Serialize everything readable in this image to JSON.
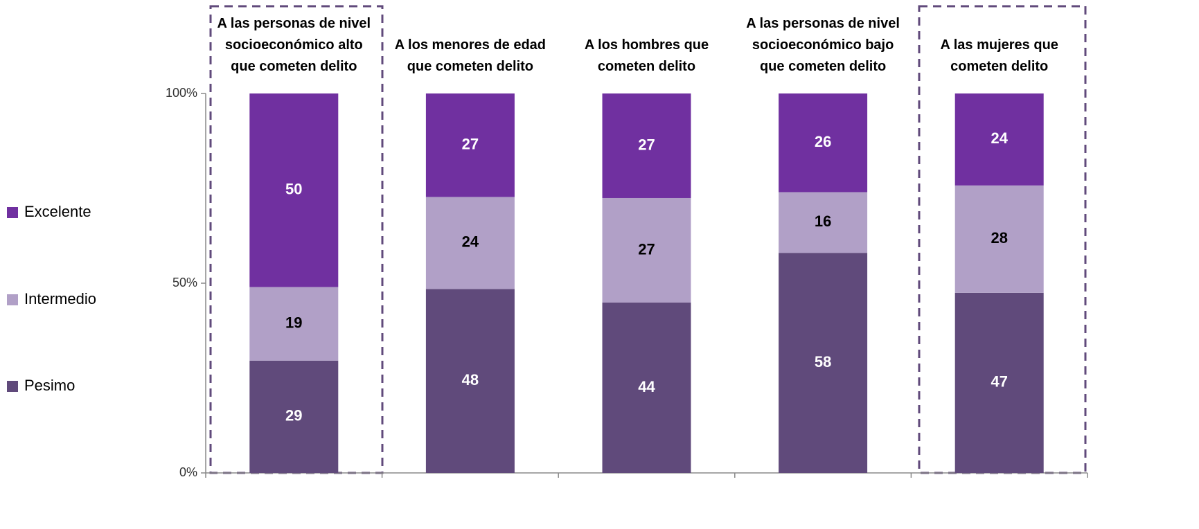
{
  "chart_data": {
    "type": "bar",
    "stacking": "percent",
    "categories": [
      "A las personas de nivel\nsocioeconómico alto\nque cometen delito",
      "A los menores de edad\nque cometen delito",
      "A los hombres que\ncometen  delito",
      "A las personas de nivel\nsocioeconómico bajo\nque cometen delito",
      "A las mujeres que\ncometen delito"
    ],
    "series": [
      {
        "name": "Pesimo",
        "color": "#604a7b",
        "label_color": "#ffffff",
        "values": [
          29,
          48,
          44,
          58,
          47
        ]
      },
      {
        "name": "Intermedio",
        "color": "#b1a0c7",
        "label_color": "#000000",
        "values": [
          19,
          24,
          27,
          16,
          28
        ]
      },
      {
        "name": "Excelente",
        "color": "#7030a0",
        "label_color": "#ffffff",
        "values": [
          50,
          27,
          27,
          26,
          24
        ]
      }
    ],
    "ylim": [
      0,
      100
    ],
    "yticks": [
      {
        "value": 0,
        "label": "0%"
      },
      {
        "value": 50,
        "label": "50%"
      },
      {
        "value": 100,
        "label": "100%"
      }
    ],
    "legend": "left"
  }
}
